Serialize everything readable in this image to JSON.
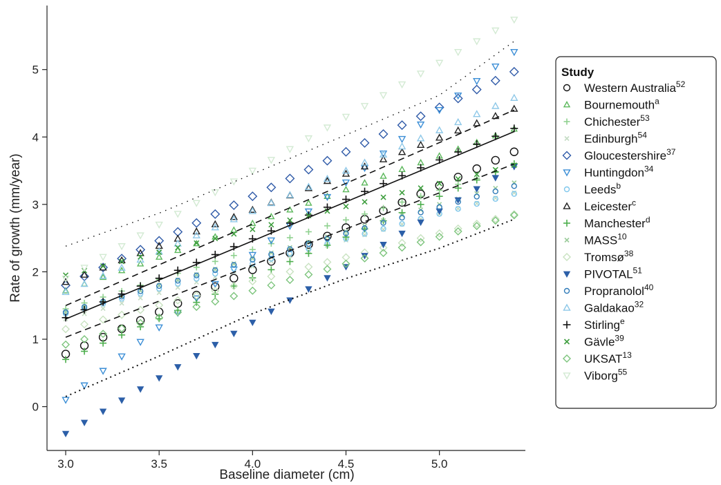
{
  "chart_data": {
    "type": "scatter",
    "title": "",
    "xlabel": "Baseline diameter (cm)",
    "ylabel": "Rate of growth (mm/year)",
    "xlim": [
      2.9,
      5.46
    ],
    "ylim": [
      -0.65,
      5.95
    ],
    "xticks": [
      "3.0",
      "3.5",
      "4.0",
      "4.5",
      "5.0"
    ],
    "yticks": [
      "0",
      "1",
      "2",
      "3",
      "4",
      "5"
    ],
    "x": [
      3.0,
      3.1,
      3.2,
      3.3,
      3.4,
      3.5,
      3.6,
      3.7,
      3.8,
      3.9,
      4.0,
      4.1,
      4.2,
      4.3,
      4.4,
      4.5,
      4.6,
      4.7,
      4.8,
      4.9,
      5.0,
      5.1,
      5.2,
      5.3,
      5.4
    ],
    "legend": {
      "title": "Study",
      "position": "right"
    },
    "series": [
      {
        "name": "Western Australia",
        "sup": "52",
        "marker": "circle-open",
        "color": "#111111",
        "size": 11,
        "y0": 0.78,
        "slope": 1.25
      },
      {
        "name": "Bournemouth",
        "sup": "a",
        "marker": "triangle-up",
        "color": "#5cb85c",
        "size": 8,
        "y0": 1.72,
        "slope": 1.0
      },
      {
        "name": "Chichester",
        "sup": "53",
        "marker": "plus",
        "color": "#8fd18f",
        "size": 7,
        "y0": 1.45,
        "slope": 0.88
      },
      {
        "name": "Edinburgh",
        "sup": "54",
        "marker": "x",
        "color": "#c5dcc5",
        "size": 6,
        "y0": 1.3,
        "slope": 0.78
      },
      {
        "name": "Gloucestershire",
        "sup": "37",
        "marker": "diamond-open",
        "color": "#2f5aa8",
        "size": 10,
        "y0": 1.8,
        "slope": 1.32
      },
      {
        "name": "Huntingdon",
        "sup": "34",
        "marker": "triangle-down",
        "color": "#3b8ed6",
        "size": 9,
        "y0": 0.1,
        "slope": 2.15
      },
      {
        "name": "Leeds",
        "sup": "b",
        "marker": "circle-open",
        "color": "#7fc7ec",
        "size": 7,
        "y0": 1.38,
        "slope": 0.74
      },
      {
        "name": "Leicester",
        "sup": "c",
        "marker": "triangle-up",
        "color": "#222222",
        "size": 9,
        "y0": 1.85,
        "slope": 1.07
      },
      {
        "name": "Manchester",
        "sup": "d",
        "marker": "plus",
        "color": "#4cae4c",
        "size": 8,
        "y0": 0.7,
        "slope": 1.21
      },
      {
        "name": "MASS",
        "sup": "10",
        "marker": "x",
        "color": "#9ccc9c",
        "size": 6,
        "y0": 1.4,
        "slope": 0.8
      },
      {
        "name": "Tromsø",
        "sup": "38",
        "marker": "diamond-open",
        "color": "#c8e2c0",
        "size": 8,
        "y0": 1.15,
        "slope": 0.71
      },
      {
        "name": "PIVOTAL",
        "sup": "51",
        "marker": "triangle-down-filled",
        "color": "#2c5fa8",
        "size": 8,
        "y0": -0.4,
        "slope": 1.65
      },
      {
        "name": "Propranolol",
        "sup": "40",
        "marker": "circle-open",
        "color": "#2f7ab8",
        "size": 7,
        "y0": 1.4,
        "slope": 0.78
      },
      {
        "name": "Galdakao",
        "sup": "32",
        "marker": "triangle-up",
        "color": "#8ec8e8",
        "size": 9,
        "y0": 1.7,
        "slope": 1.2
      },
      {
        "name": "Stirling",
        "sup": "e",
        "marker": "plus",
        "color": "#111111",
        "size": 9,
        "y0": 1.32,
        "slope": 1.17
      },
      {
        "name": "Gävle",
        "sup": "39",
        "marker": "x",
        "color": "#3e9e3e",
        "size": 7,
        "y0": 1.95,
        "slope": 0.68
      },
      {
        "name": "UKSAT",
        "sup": "13",
        "marker": "diamond-open",
        "color": "#7cc47c",
        "size": 8,
        "y0": 0.92,
        "slope": 0.8
      },
      {
        "name": "Viborg",
        "sup": "55",
        "marker": "triangle-down",
        "color": "#d3ead3",
        "size": 9,
        "y0": 1.9,
        "slope": 1.6
      }
    ],
    "lines": [
      {
        "role": "mean",
        "style": "solid",
        "color": "#111111",
        "x": [
          3.0,
          5.4
        ],
        "y": [
          1.3,
          4.08
        ]
      },
      {
        "role": "ci-upper",
        "style": "dashed",
        "color": "#111111",
        "x": [
          3.0,
          5.4
        ],
        "y": [
          1.5,
          4.4
        ]
      },
      {
        "role": "ci-lower",
        "style": "dashed",
        "color": "#111111",
        "x": [
          3.0,
          5.4
        ],
        "y": [
          1.03,
          3.6
        ]
      },
      {
        "role": "pi-upper",
        "style": "dotted",
        "color": "#111111",
        "x": [
          3.0,
          3.5,
          4.0,
          4.5,
          5.0,
          5.4
        ],
        "y": [
          2.38,
          2.87,
          3.45,
          4.03,
          4.62,
          5.42
        ]
      },
      {
        "role": "pi-lower",
        "style": "dotted",
        "color": "#111111",
        "x": [
          3.0,
          3.5,
          4.0,
          4.5,
          5.0,
          5.4
        ],
        "y": [
          0.15,
          0.75,
          1.38,
          1.9,
          2.35,
          2.78
        ]
      }
    ]
  }
}
